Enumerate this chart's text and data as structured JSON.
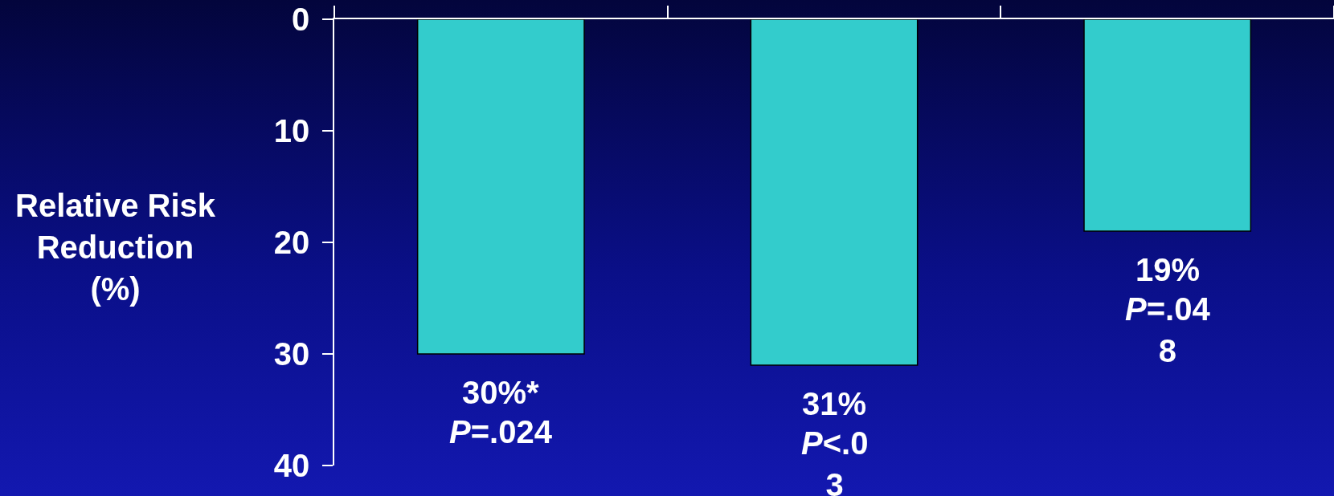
{
  "chart_data": {
    "type": "bar",
    "ylabel": "Relative Risk\nReduction\n(%)",
    "categories": [
      null,
      null,
      null
    ],
    "values": [
      30,
      31,
      19
    ],
    "color": "#33cccc",
    "value_labels": [
      "30%*",
      "31%",
      "19%"
    ],
    "annotations": [
      "P=.024",
      "P<.0\n3",
      "P=.04\n8"
    ],
    "ylim": [
      40,
      0
    ],
    "yticks": [
      0,
      10,
      20,
      30,
      40
    ]
  }
}
